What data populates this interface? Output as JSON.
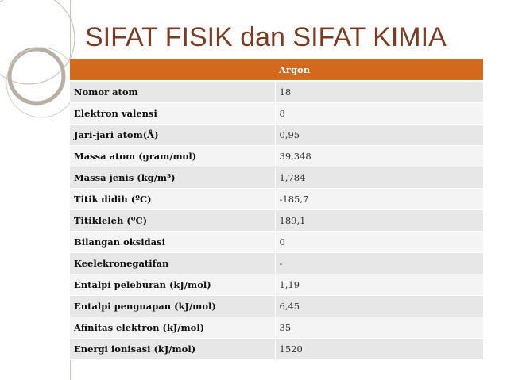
{
  "slide": {
    "title": "SIFAT FISIK dan SIFAT KIMIA"
  },
  "table": {
    "header": [
      "",
      "Argon"
    ],
    "rows": [
      {
        "property": "Nomor atom",
        "value": "18"
      },
      {
        "property": "Elektron valensi",
        "value": "8"
      },
      {
        "property": "Jari-jari atom(Å)",
        "value": "0,95"
      },
      {
        "property": "Massa atom (gram/mol)",
        "value": "39,348"
      },
      {
        "property": "Massa jenis (kg/m³)",
        "value": "1,784"
      },
      {
        "property": "Titik didih (ºC)",
        "value": "-185,7"
      },
      {
        "property": "Titikleleh (ºC)",
        "value": "189,1"
      },
      {
        "property": "Bilangan oksidasi",
        "value": "0"
      },
      {
        "property": "Keelekronegatifan",
        "value": "-"
      },
      {
        "property": "Entalpi peleburan (kJ/mol)",
        "value": "1,19"
      },
      {
        "property": "Entalpi penguapan (kJ/mol)",
        "value": "6,45"
      },
      {
        "property": "Afinitas elektron (kJ/mol)",
        "value": "35"
      },
      {
        "property": "Energi ionisasi (kJ/mol)",
        "value": "1520"
      }
    ]
  },
  "colors": {
    "title": "#7a3b24",
    "header_bg": "#d16a1d",
    "row_odd": "#e7e7e7",
    "row_even": "#f4f4f4"
  }
}
